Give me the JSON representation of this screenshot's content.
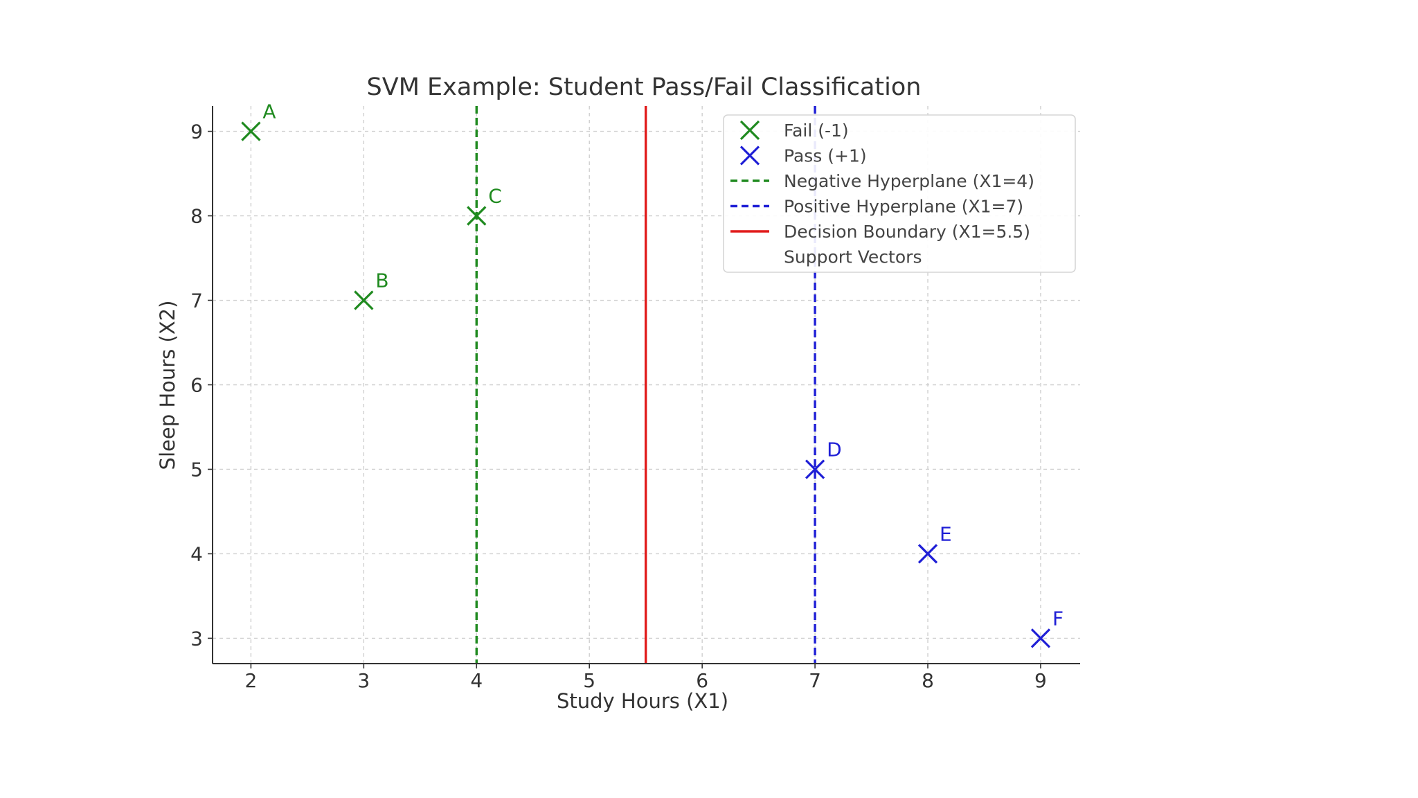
{
  "colors": {
    "fail": "#1f8a1f",
    "pass": "#1f1fd6",
    "boundary": "#e11b1b",
    "grid": "#cfcfcf",
    "axis": "#333333"
  },
  "chart_data": {
    "type": "scatter",
    "title": "SVM Example: Student Pass/Fail Classification",
    "xlabel": "Study Hours (X1)",
    "ylabel": "Sleep Hours (X2)",
    "xlim": [
      1.66,
      9.35
    ],
    "ylim": [
      2.7,
      9.3
    ],
    "xticks": [
      2,
      3,
      4,
      5,
      6,
      7,
      8,
      9
    ],
    "yticks": [
      3,
      4,
      5,
      6,
      7,
      8,
      9
    ],
    "grid": true,
    "legend_position": "top-right",
    "series": [
      {
        "name": "Fail (-1)",
        "marker": "x",
        "color": "#1f8a1f",
        "points": [
          {
            "label": "A",
            "x": 2,
            "y": 9
          },
          {
            "label": "B",
            "x": 3,
            "y": 7
          },
          {
            "label": "C",
            "x": 4,
            "y": 8
          }
        ]
      },
      {
        "name": "Pass (+1)",
        "marker": "x",
        "color": "#1f1fd6",
        "points": [
          {
            "label": "D",
            "x": 7,
            "y": 5
          },
          {
            "label": "E",
            "x": 8,
            "y": 4
          },
          {
            "label": "F",
            "x": 9,
            "y": 3
          }
        ]
      }
    ],
    "vlines": [
      {
        "name": "Negative Hyperplane (X1=4)",
        "x": 4,
        "color": "#1f8a1f",
        "style": "dashed"
      },
      {
        "name": "Positive Hyperplane (X1=7)",
        "x": 7,
        "color": "#1f1fd6",
        "style": "dashed"
      },
      {
        "name": "Decision Boundary (X1=5.5)",
        "x": 5.5,
        "color": "#e11b1b",
        "style": "solid"
      }
    ],
    "legend": [
      {
        "label": "Fail (-1)",
        "kind": "marker",
        "color": "#1f8a1f"
      },
      {
        "label": "Pass (+1)",
        "kind": "marker",
        "color": "#1f1fd6"
      },
      {
        "label": "Negative Hyperplane (X1=4)",
        "kind": "dashed",
        "color": "#1f8a1f"
      },
      {
        "label": "Positive Hyperplane (X1=7)",
        "kind": "dashed",
        "color": "#1f1fd6"
      },
      {
        "label": "Decision Boundary (X1=5.5)",
        "kind": "solid",
        "color": "#e11b1b"
      },
      {
        "label": "Support Vectors",
        "kind": "none",
        "color": "none"
      }
    ]
  }
}
